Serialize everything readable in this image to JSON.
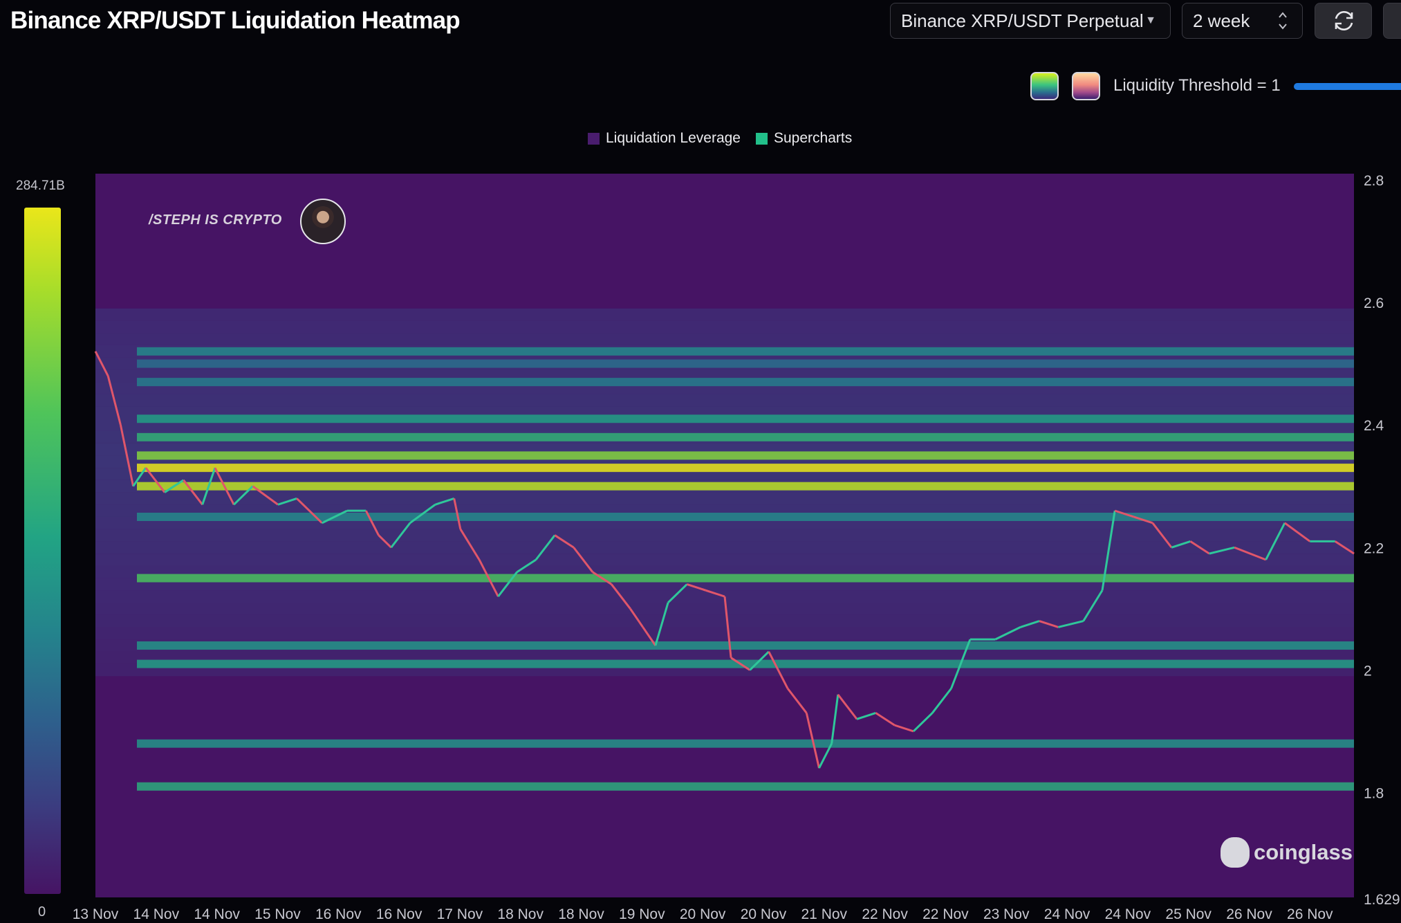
{
  "header": {
    "title": "Binance XRP/USDT Liquidation Heatmap",
    "market_select": "Binance XRP/USDT Perpetual",
    "range_select": "2 week"
  },
  "controls": {
    "threshold_label": "Liquidity Threshold = 1"
  },
  "legend": [
    {
      "label": "Liquidation Leverage",
      "color": "#4a1d6e"
    },
    {
      "label": "Supercharts",
      "color": "#22c08a"
    }
  ],
  "scale": {
    "max_label": "284.71B",
    "min_label": "0"
  },
  "watermarks": {
    "author": "/STEPH IS CRYPTO",
    "brand": "coinglass"
  },
  "chart_data": {
    "type": "heatmap",
    "x_tick_labels": [
      "13 Nov",
      "14 Nov",
      "14 Nov",
      "15 Nov",
      "16 Nov",
      "16 Nov",
      "17 Nov",
      "18 Nov",
      "18 Nov",
      "19 Nov",
      "20 Nov",
      "20 Nov",
      "21 Nov",
      "22 Nov",
      "22 Nov",
      "23 Nov",
      "24 Nov",
      "24 Nov",
      "25 Nov",
      "26 Nov",
      "26 Nov"
    ],
    "y_ticks": [
      2.8,
      2.6,
      2.4,
      2.2,
      2,
      1.8
    ],
    "y_tick_labels": [
      "2.8",
      "2.6",
      "2.4",
      "2.2",
      "2",
      "1.8"
    ],
    "y_min_label": "1.629",
    "ylim": [
      1.629,
      2.81
    ],
    "color_scale": {
      "min": 0,
      "max": "284.71B",
      "colors": [
        "#461464",
        "#3b3d80",
        "#2e5f8c",
        "#24838c",
        "#22a484",
        "#4fc45a",
        "#a8dd2a",
        "#eae61a"
      ]
    },
    "price_path": [
      [
        0.0,
        2.52
      ],
      [
        0.01,
        2.48
      ],
      [
        0.02,
        2.4
      ],
      [
        0.03,
        2.3
      ],
      [
        0.04,
        2.33
      ],
      [
        0.055,
        2.29
      ],
      [
        0.07,
        2.31
      ],
      [
        0.085,
        2.27
      ],
      [
        0.095,
        2.33
      ],
      [
        0.11,
        2.27
      ],
      [
        0.125,
        2.3
      ],
      [
        0.145,
        2.27
      ],
      [
        0.16,
        2.28
      ],
      [
        0.18,
        2.24
      ],
      [
        0.2,
        2.26
      ],
      [
        0.215,
        2.26
      ],
      [
        0.225,
        2.22
      ],
      [
        0.235,
        2.2
      ],
      [
        0.25,
        2.24
      ],
      [
        0.27,
        2.27
      ],
      [
        0.285,
        2.28
      ],
      [
        0.29,
        2.23
      ],
      [
        0.305,
        2.18
      ],
      [
        0.32,
        2.12
      ],
      [
        0.335,
        2.16
      ],
      [
        0.35,
        2.18
      ],
      [
        0.365,
        2.22
      ],
      [
        0.38,
        2.2
      ],
      [
        0.395,
        2.16
      ],
      [
        0.41,
        2.14
      ],
      [
        0.425,
        2.1
      ],
      [
        0.435,
        2.07
      ],
      [
        0.445,
        2.04
      ],
      [
        0.455,
        2.11
      ],
      [
        0.47,
        2.14
      ],
      [
        0.485,
        2.13
      ],
      [
        0.5,
        2.12
      ],
      [
        0.505,
        2.02
      ],
      [
        0.52,
        2.0
      ],
      [
        0.535,
        2.03
      ],
      [
        0.55,
        1.97
      ],
      [
        0.565,
        1.93
      ],
      [
        0.575,
        1.84
      ],
      [
        0.585,
        1.88
      ],
      [
        0.59,
        1.96
      ],
      [
        0.605,
        1.92
      ],
      [
        0.62,
        1.93
      ],
      [
        0.635,
        1.91
      ],
      [
        0.65,
        1.9
      ],
      [
        0.665,
        1.93
      ],
      [
        0.68,
        1.97
      ],
      [
        0.695,
        2.05
      ],
      [
        0.715,
        2.05
      ],
      [
        0.735,
        2.07
      ],
      [
        0.75,
        2.08
      ],
      [
        0.765,
        2.07
      ],
      [
        0.785,
        2.08
      ],
      [
        0.8,
        2.13
      ],
      [
        0.81,
        2.26
      ],
      [
        0.825,
        2.25
      ],
      [
        0.84,
        2.24
      ],
      [
        0.855,
        2.2
      ],
      [
        0.87,
        2.21
      ],
      [
        0.885,
        2.19
      ],
      [
        0.905,
        2.2
      ],
      [
        0.93,
        2.18
      ],
      [
        0.945,
        2.24
      ],
      [
        0.965,
        2.21
      ],
      [
        0.985,
        2.21
      ],
      [
        1.0,
        2.19
      ]
    ],
    "liquidity_bands": [
      {
        "price": 2.52,
        "intensity": 0.45
      },
      {
        "price": 2.5,
        "intensity": 0.35
      },
      {
        "price": 2.47,
        "intensity": 0.4
      },
      {
        "price": 2.41,
        "intensity": 0.55
      },
      {
        "price": 2.38,
        "intensity": 0.62
      },
      {
        "price": 2.35,
        "intensity": 0.8
      },
      {
        "price": 2.33,
        "intensity": 1.0
      },
      {
        "price": 2.3,
        "intensity": 0.9
      },
      {
        "price": 2.25,
        "intensity": 0.45
      },
      {
        "price": 2.15,
        "intensity": 0.7
      },
      {
        "price": 2.04,
        "intensity": 0.5
      },
      {
        "price": 2.01,
        "intensity": 0.55
      },
      {
        "price": 1.88,
        "intensity": 0.5
      },
      {
        "price": 1.81,
        "intensity": 0.6
      }
    ]
  }
}
